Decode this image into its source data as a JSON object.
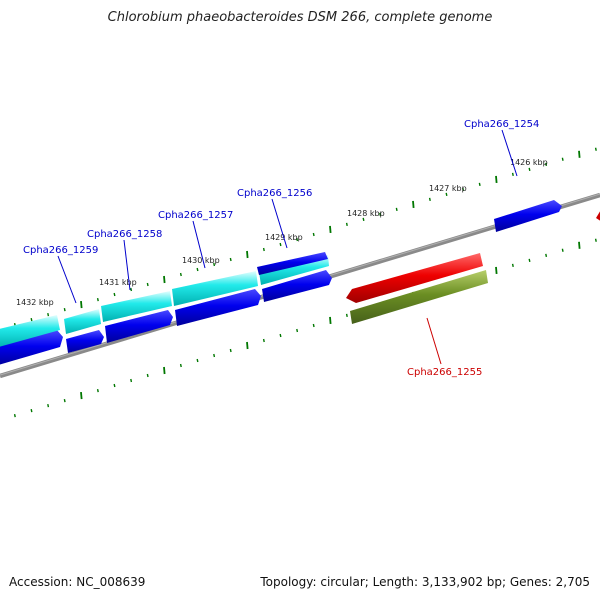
{
  "title": "Chlorobium phaeobacteroides DSM 266, complete genome",
  "footer": {
    "accession": "Accession: NC_008639",
    "summary": "Topology: circular; Length: 3,133,902 bp; Genes: 2,705"
  },
  "scale_labels": [
    "1426 kbp",
    "1427 kbp",
    "1428 kbp",
    "1429 kbp",
    "1430 kbp",
    "1431 kbp",
    "1432 kbp"
  ],
  "gene_labels": [
    {
      "name": "Cpha266_1254",
      "color": "#0000cc"
    },
    {
      "name": "Cpha266_1256",
      "color": "#0000cc"
    },
    {
      "name": "Cpha266_1257",
      "color": "#0000cc"
    },
    {
      "name": "Cpha266_1258",
      "color": "#0000cc"
    },
    {
      "name": "Cpha266_1259",
      "color": "#0000cc"
    },
    {
      "name": "Cpha266_1255",
      "color": "#cc0000"
    }
  ],
  "colors": {
    "backbone": "#808080",
    "cds_forward": "#0000ee",
    "gene_forward": "#00dede",
    "gene_reverse": "#ee0000",
    "cds_reverse": "#6b8e23",
    "ticks": "#007700"
  }
}
